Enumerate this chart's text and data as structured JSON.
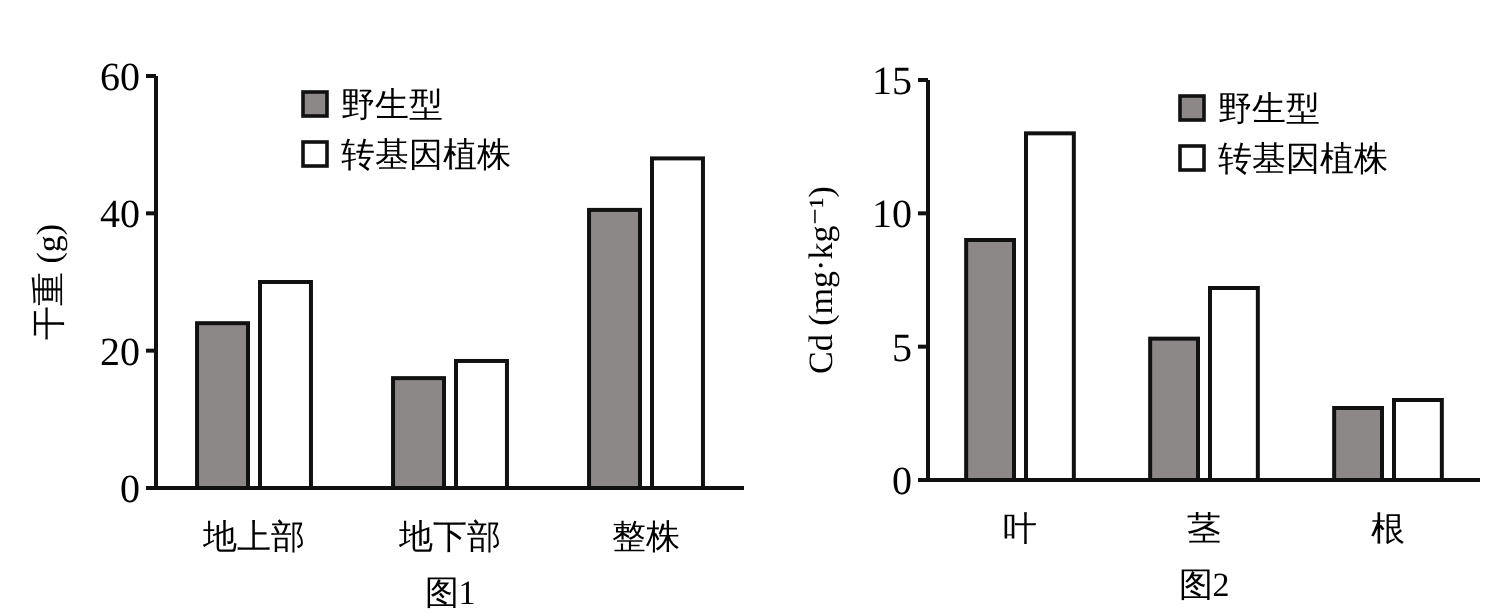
{
  "chart_data": [
    {
      "type": "bar",
      "xlabel": "图1",
      "ylabel": "干重 (g)",
      "categories": [
        "地上部",
        "地下部",
        "整株"
      ],
      "ylim": [
        0,
        60
      ],
      "yticks": [
        0,
        20,
        40,
        60
      ],
      "legend": "top",
      "series": [
        {
          "name": "野生型",
          "color": "#8c8888",
          "values": [
            24,
            16,
            40.5
          ]
        },
        {
          "name": "转基因植株",
          "color": "#ffffff",
          "values": [
            30,
            18.5,
            48
          ]
        }
      ]
    },
    {
      "type": "bar",
      "xlabel": "图2",
      "ylabel": "Cd (mg·kg⁻¹)",
      "categories": [
        "叶",
        "茎",
        "根"
      ],
      "ylim": [
        0,
        15
      ],
      "yticks": [
        0,
        5,
        10,
        15
      ],
      "legend": "top right",
      "series": [
        {
          "name": "野生型",
          "color": "#8c8888",
          "values": [
            9,
            5.3,
            2.7
          ]
        },
        {
          "name": "转基因植株",
          "color": "#ffffff",
          "values": [
            13,
            7.2,
            3
          ]
        }
      ]
    }
  ]
}
